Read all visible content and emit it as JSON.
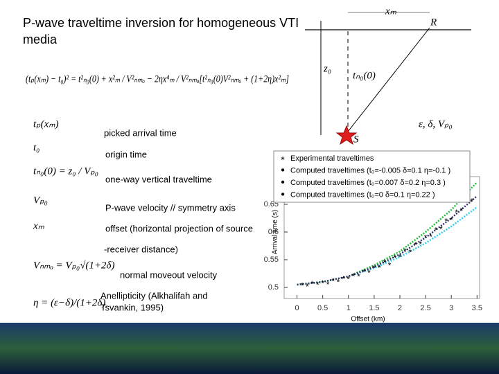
{
  "title": "P-wave traveltime inversion for homogeneous VTI media",
  "equation": "(tₚ(xₘ) − t₀)² = t²ₙ₀(0) + x²ₘ / V²ₙₘₒ − 2ηx⁴ₘ / V²ₙₘₒ[t²ₙ₀(0)V²ₙₘₒ + (1+2η)x²ₘ]",
  "definitions": [
    {
      "symbol": "tₚ(xₘ)",
      "text": [
        "picked arrival time"
      ]
    },
    {
      "symbol": "t₀",
      "text": [
        "origin time"
      ]
    },
    {
      "symbol": "tₙ₀(0) = z₀ / Vₚ₀",
      "text": [
        "one-way vertical traveltime"
      ]
    },
    {
      "symbol": "Vₚ₀",
      "text": [
        "P-wave velocity // symmetry axis"
      ]
    },
    {
      "symbol": "xₘ",
      "text": [
        "offset (horizontal projection of source",
        "-receiver distance)"
      ]
    },
    {
      "symbol": "Vₙₘₒ = Vₚ₀√(1+2δ)",
      "text": [
        "normal moveout velocity"
      ]
    },
    {
      "symbol": "η = (ε−δ)/(1+2δ)",
      "text": [
        "Anellipticity (Alkhalifah and",
        "Tsvankin, 1995)"
      ]
    }
  ],
  "diagram": {
    "x_label": "xₘ",
    "receiver": "R",
    "depth": "z₀",
    "ray_time": "tₙ₀(0)",
    "source": "S",
    "params": "ε, δ, Vₚ₀"
  },
  "chart_data": {
    "type": "line",
    "x_label": "Offset (km)",
    "y_label": "Arrival time (s)",
    "xlim": [
      -0.25,
      3.55
    ],
    "ylim": [
      0.48,
      0.7
    ],
    "xticks": [
      0,
      0.5,
      1,
      1.5,
      2,
      2.5,
      3,
      3.5
    ],
    "yticks": [
      0.5,
      0.55,
      0.6,
      0.65
    ],
    "x": [
      0,
      0.5,
      1,
      1.5,
      2,
      2.5,
      3,
      3.5
    ],
    "scatter": {
      "name": "Experimental traveltimes",
      "color": "#cc2222",
      "x": [
        0.1,
        0.2,
        0.3,
        0.4,
        0.5,
        0.6,
        0.7,
        0.8,
        0.9,
        1.0,
        1.1,
        1.2,
        1.3,
        1.4,
        1.5,
        1.6,
        1.7,
        1.8,
        1.9,
        2.0,
        2.1,
        2.2,
        2.3,
        2.4,
        2.5,
        2.6,
        2.7,
        2.8,
        2.9,
        3.0,
        3.1,
        3.2,
        3.3,
        3.4
      ],
      "values": [
        0.506,
        0.504,
        0.509,
        0.507,
        0.51,
        0.508,
        0.514,
        0.512,
        0.518,
        0.517,
        0.523,
        0.522,
        0.53,
        0.529,
        0.537,
        0.538,
        0.547,
        0.542,
        0.556,
        0.557,
        0.568,
        0.566,
        0.579,
        0.58,
        0.592,
        0.594,
        0.606,
        0.608,
        0.622,
        0.624,
        0.638,
        0.641,
        0.655,
        0.658
      ]
    },
    "series": [
      {
        "name": "Computed traveltimes (t₀=-0.005 δ=0.1 η=-0.1 )",
        "color": "#33ccee",
        "values": [
          0.505,
          0.51,
          0.52,
          0.535,
          0.555,
          0.58,
          0.61,
          0.645
        ]
      },
      {
        "name": "Computed traveltimes (t₀=0.007 δ=0.2 η=0.3 )",
        "color": "#22bb33",
        "values": [
          0.505,
          0.51,
          0.52,
          0.54,
          0.565,
          0.6,
          0.64,
          0.69
        ]
      },
      {
        "name": "Computed traveltimes (t₀=0 δ=0.1 η=0.22 )",
        "color": "#333366",
        "values": [
          0.505,
          0.51,
          0.52,
          0.537,
          0.56,
          0.59,
          0.625,
          0.665
        ]
      }
    ]
  }
}
